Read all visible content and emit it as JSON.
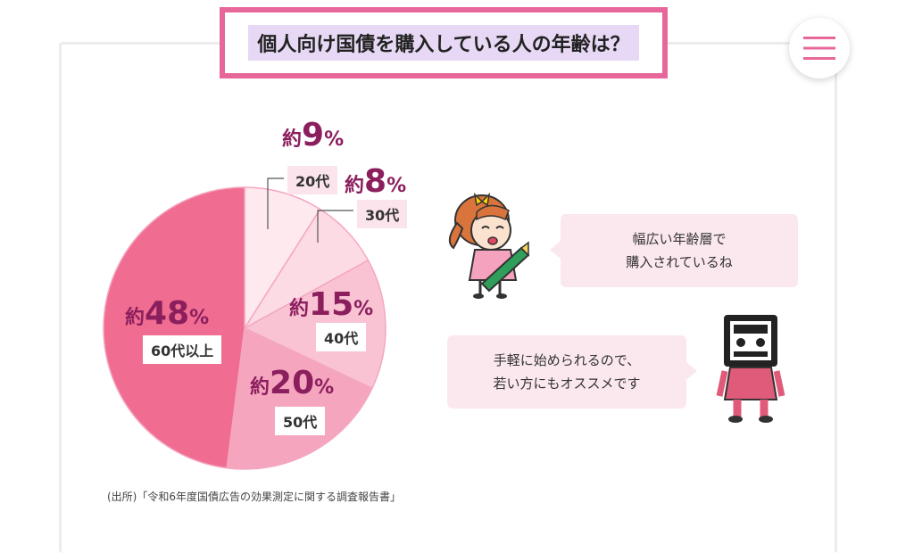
{
  "header": {
    "title": "個人向け国債を購入している人の年齢は？"
  },
  "menu": {
    "icon": "hamburger-menu-icon"
  },
  "chart_data": {
    "type": "pie",
    "title": "個人向け国債を購入している人の年齢は？",
    "categories": [
      "20代",
      "30代",
      "40代",
      "50代",
      "60代以上"
    ],
    "values": [
      9,
      8,
      15,
      20,
      48
    ],
    "value_prefix": "約",
    "value_unit": "%",
    "colors": [
      "#fde9ee",
      "#fcdbe5",
      "#f9c3d4",
      "#f6a5bf",
      "#f06d91"
    ],
    "start": "12 o'clock",
    "direction": "clockwise"
  },
  "slice_labels": [
    {
      "prefix": "約",
      "value": "9",
      "unit": "%",
      "age": "20代"
    },
    {
      "prefix": "約",
      "value": "8",
      "unit": "%",
      "age": "30代"
    },
    {
      "prefix": "約",
      "value": "15",
      "unit": "%",
      "age": "40代"
    },
    {
      "prefix": "約",
      "value": "20",
      "unit": "%",
      "age": "50代"
    },
    {
      "prefix": "約",
      "value": "48",
      "unit": "%",
      "age": "60代以上"
    }
  ],
  "speech": {
    "girl": {
      "line1": "幅広い年齢層で",
      "line2": "購入されているね"
    },
    "robot": {
      "line1": "手軽に始められるので、",
      "line2": "若い方にもオススメです"
    }
  },
  "source": "(出所)「令和6年度国債広告の効果測定に関する調査報告書」",
  "colors": {
    "accent": "#e8679b",
    "label": "#8b1f5e"
  }
}
